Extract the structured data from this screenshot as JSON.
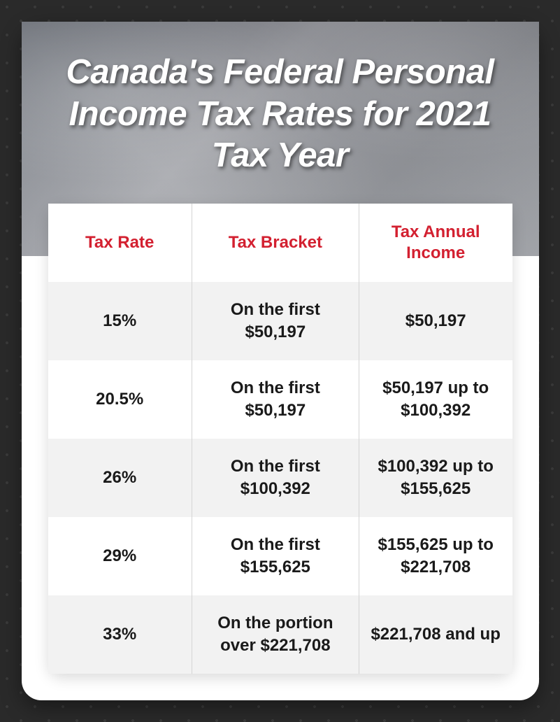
{
  "title": "Canada's Federal Personal Income Tax Rates for 2021 Tax Year",
  "columns": {
    "rate": "Tax Rate",
    "bracket": "Tax Bracket",
    "income": "Tax Annual Income"
  },
  "rows": [
    {
      "rate": "15%",
      "bracket": "On the first $50,197",
      "income": "$50,197"
    },
    {
      "rate": "20.5%",
      "bracket": "On the first $50,197",
      "income": "$50,197 up to $100,392"
    },
    {
      "rate": "26%",
      "bracket": "On the first $100,392",
      "income": "$100,392 up to $155,625"
    },
    {
      "rate": "29%",
      "bracket": "On the first $155,625",
      "income": "$155,625 up to $221,708"
    },
    {
      "rate": "33%",
      "bracket": "On the portion over $221,708",
      "income": "$221,708 and up"
    }
  ],
  "style": {
    "header_color": "#d32030",
    "text_color": "#1a1a1a",
    "row_alt_bg": "#f2f2f2",
    "row_bg": "#ffffff",
    "border_color": "#d4d4d4",
    "title_color": "#ffffff",
    "title_fontsize": 49,
    "cell_fontsize": 24,
    "header_fontsize": 24,
    "card_radius": 28,
    "table_radius": 18,
    "page_bg": "#2a2a2a"
  }
}
